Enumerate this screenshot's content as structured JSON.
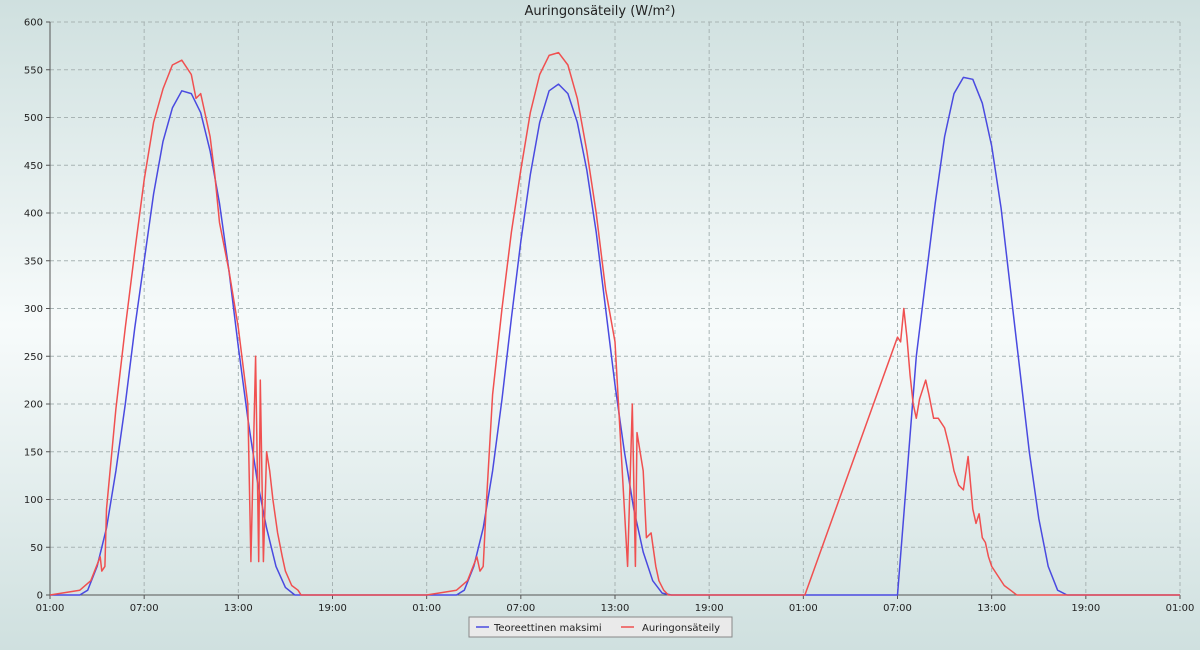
{
  "chart_data": {
    "type": "line",
    "title": "Auringonsäteily (W/m²)",
    "xlabel": "",
    "ylabel": "",
    "ylim": [
      0,
      600
    ],
    "yticks": [
      0,
      50,
      100,
      150,
      200,
      250,
      300,
      350,
      400,
      450,
      500,
      550,
      600
    ],
    "xlim": [
      0,
      72
    ],
    "xticks": [
      {
        "x": 0,
        "label": "01:00"
      },
      {
        "x": 6,
        "label": "07:00"
      },
      {
        "x": 12,
        "label": "13:00"
      },
      {
        "x": 18,
        "label": "19:00"
      },
      {
        "x": 24,
        "label": "01:00"
      },
      {
        "x": 30,
        "label": "07:00"
      },
      {
        "x": 36,
        "label": "13:00"
      },
      {
        "x": 42,
        "label": "19:00"
      },
      {
        "x": 48,
        "label": "01:00"
      },
      {
        "x": 54,
        "label": "07:00"
      },
      {
        "x": 60,
        "label": "13:00"
      },
      {
        "x": 66,
        "label": "19:00"
      },
      {
        "x": 72,
        "label": "01:00"
      }
    ],
    "grid": true,
    "legend_position": "bottom-center",
    "series": [
      {
        "name": "Teoreettinen maksimi",
        "color": "#4a4ae0",
        "x": [
          0,
          1.9,
          2.4,
          3,
          3.6,
          4.2,
          4.8,
          5.4,
          6,
          6.6,
          7.2,
          7.8,
          8.4,
          9,
          9.6,
          10.2,
          10.8,
          11.4,
          12,
          12.6,
          13.2,
          13.8,
          14.4,
          15,
          15.6,
          16.2,
          16.8,
          17.4,
          18,
          24,
          25.9,
          26.4,
          27,
          27.6,
          28.2,
          28.8,
          29.4,
          30,
          30.6,
          31.2,
          31.8,
          32.4,
          33,
          33.6,
          34.2,
          34.8,
          35.4,
          36,
          36.6,
          37.2,
          37.8,
          38.4,
          39,
          39.6,
          40.2,
          40.8,
          41.4,
          42,
          48,
          54,
          55.2,
          55.8,
          56.4,
          57,
          57.6,
          58.2,
          58.8,
          59.4,
          60,
          60.6,
          61.2,
          61.8,
          62.4,
          63,
          63.6,
          64.2,
          64.8,
          65.4,
          66,
          72
        ],
        "y": [
          0,
          0,
          5,
          30,
          70,
          130,
          200,
          280,
          350,
          420,
          475,
          510,
          528,
          525,
          505,
          465,
          410,
          340,
          260,
          185,
          120,
          70,
          30,
          8,
          0,
          0,
          0,
          0,
          0,
          0,
          0,
          5,
          30,
          70,
          130,
          205,
          290,
          370,
          440,
          495,
          528,
          535,
          525,
          495,
          445,
          380,
          300,
          220,
          150,
          90,
          45,
          15,
          2,
          0,
          0,
          0,
          0,
          0,
          0,
          0,
          250,
          330,
          410,
          480,
          525,
          542,
          540,
          515,
          470,
          405,
          320,
          235,
          150,
          80,
          30,
          5,
          0,
          0,
          0,
          0
        ]
      },
      {
        "name": "Auringonsäteily",
        "color": "#f05050",
        "x": [
          0,
          1.9,
          2.6,
          3.2,
          3.3,
          3.5,
          3.6,
          4.2,
          4.8,
          5.4,
          6,
          6.6,
          7.2,
          7.8,
          8.4,
          9,
          9.3,
          9.6,
          10.2,
          10.5,
          10.8,
          11.4,
          12,
          12.6,
          12.8,
          13.1,
          13.3,
          13.4,
          13.6,
          13.8,
          14,
          14.2,
          14.5,
          14.8,
          15,
          15.4,
          15.8,
          16,
          16.3,
          16.5,
          16.6,
          17,
          17.4,
          18,
          24,
          25.9,
          26.6,
          27.2,
          27.4,
          27.6,
          27.8,
          28.2,
          28.8,
          29.4,
          30,
          30.6,
          31.2,
          31.8,
          32.4,
          33,
          33.6,
          34.2,
          34.8,
          35.4,
          36,
          36.8,
          37.1,
          37.3,
          37.4,
          37.6,
          37.8,
          38,
          38.3,
          38.6,
          38.8,
          39.1,
          39.4,
          39.6,
          40,
          40.4,
          40.8,
          48,
          48.1,
          54,
          54.2,
          54.4,
          54.6,
          54.8,
          55,
          55.2,
          55.4,
          55.6,
          55.8,
          56,
          56.3,
          56.6,
          57,
          57.3,
          57.6,
          57.9,
          58.2,
          58.5,
          58.8,
          59,
          59.2,
          59.4,
          59.6,
          59.8,
          60,
          60.4,
          60.8,
          61.2,
          61.6,
          62,
          62.4,
          62.8,
          63.2,
          63.6,
          64,
          64.4,
          64.8,
          65.2,
          65.6,
          72
        ],
        "y": [
          0,
          5,
          15,
          40,
          25,
          30,
          90,
          195,
          280,
          360,
          435,
          495,
          530,
          555,
          560,
          545,
          520,
          525,
          480,
          440,
          390,
          340,
          280,
          200,
          35,
          250,
          35,
          225,
          35,
          150,
          130,
          100,
          65,
          40,
          25,
          10,
          5,
          0,
          0,
          0,
          0,
          0,
          0,
          0,
          0,
          5,
          15,
          40,
          25,
          30,
          95,
          210,
          300,
          380,
          445,
          505,
          545,
          565,
          568,
          555,
          520,
          465,
          400,
          320,
          265,
          30,
          200,
          30,
          170,
          150,
          130,
          60,
          65,
          30,
          15,
          5,
          0,
          0,
          0,
          0,
          0,
          0,
          0,
          270,
          265,
          300,
          270,
          230,
          200,
          185,
          205,
          215,
          225,
          210,
          185,
          185,
          175,
          155,
          130,
          115,
          110,
          145,
          90,
          75,
          85,
          60,
          55,
          40,
          30,
          20,
          10,
          5,
          0,
          0,
          0,
          0,
          0,
          0,
          0,
          0,
          0,
          0,
          0,
          0
        ]
      }
    ]
  }
}
